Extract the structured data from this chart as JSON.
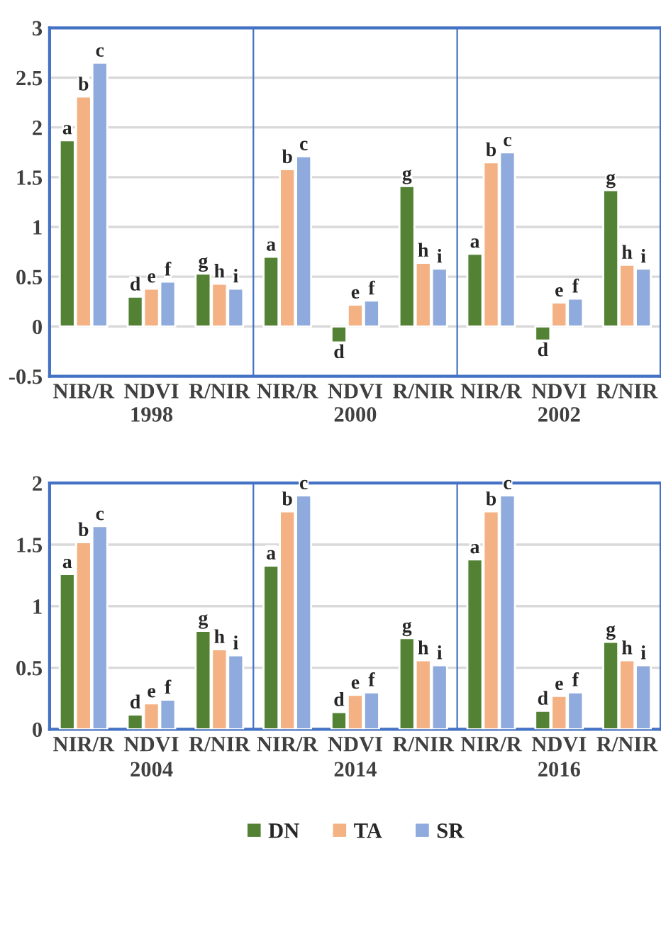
{
  "chart_data": [
    {
      "type": "bar",
      "categories": [
        "NIR/R",
        "NDVI",
        "R/NIR",
        "NIR/R",
        "NDVI",
        "R/NIR",
        "NIR/R",
        "NDVI",
        "R/NIR"
      ],
      "series": [
        {
          "color": "#548235",
          "values": [
            1.87,
            0.3,
            0.53,
            0.7,
            -0.16,
            1.41,
            0.73,
            -0.14,
            1.37
          ],
          "value_labels": [
            "a",
            "d",
            "g",
            "a",
            "d",
            "g",
            "a",
            "d",
            "g"
          ]
        },
        {
          "color": "#f4b183",
          "values": [
            2.31,
            0.38,
            0.43,
            1.58,
            0.22,
            0.64,
            1.65,
            0.24,
            0.62
          ],
          "value_labels": [
            "b",
            "e",
            "h",
            "b",
            "e",
            "h",
            "b",
            "e",
            "h"
          ]
        },
        {
          "color": "#8faadc",
          "values": [
            2.65,
            0.45,
            0.38,
            1.71,
            0.26,
            0.58,
            1.75,
            0.28,
            0.58
          ],
          "value_labels": [
            "c",
            "f",
            "i",
            "c",
            "f",
            "i",
            "c",
            "f",
            "i"
          ]
        }
      ],
      "ylim": [
        -0.5,
        3
      ],
      "yticks": [
        -0.5,
        0,
        0.5,
        1,
        1.5,
        2,
        2.5,
        3
      ],
      "grid": "y",
      "annotations": [
        "1998",
        "2000",
        "2002"
      ]
    },
    {
      "type": "bar",
      "categories": [
        "NIR/R",
        "NDVI",
        "R/NIR",
        "NIR/R",
        "NDVI",
        "R/NIR",
        "NIR/R",
        "NDVI",
        "R/NIR"
      ],
      "series": [
        {
          "name": "DN",
          "color": "#548235",
          "values": [
            1.26,
            0.12,
            0.8,
            1.33,
            0.14,
            0.74,
            1.38,
            0.15,
            0.71
          ],
          "value_labels": [
            "a",
            "d",
            "g",
            "a",
            "d",
            "g",
            "a",
            "d",
            "g"
          ]
        },
        {
          "name": "TA",
          "color": "#f4b183",
          "values": [
            1.52,
            0.21,
            0.65,
            1.77,
            0.28,
            0.56,
            1.77,
            0.27,
            0.56
          ],
          "value_labels": [
            "b",
            "e",
            "h",
            "b",
            "e",
            "h",
            "b",
            "e",
            "h"
          ]
        },
        {
          "name": "SR",
          "color": "#8faadc",
          "values": [
            1.65,
            0.24,
            0.6,
            1.9,
            0.3,
            0.52,
            1.9,
            0.3,
            0.52
          ],
          "value_labels": [
            "c",
            "f",
            "i",
            "c",
            "f",
            "i",
            "c",
            "f",
            "i"
          ]
        }
      ],
      "ylim": [
        0,
        2
      ],
      "yticks": [
        0,
        0.5,
        1,
        1.5,
        2
      ],
      "grid": "y",
      "legend": "bottom",
      "annotations": [
        "2004",
        "2014",
        "2016"
      ]
    }
  ]
}
